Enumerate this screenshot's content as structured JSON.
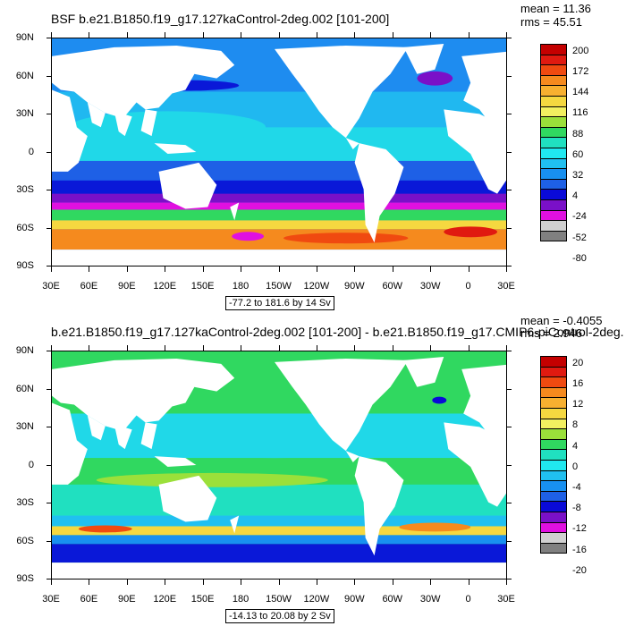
{
  "panels": [
    {
      "title": "BSF b.e21.B1850.f19_g17.127kaControl-2deg.002 [101-200]",
      "mean": "mean = 11.36",
      "rms": "rms = 45.51",
      "range_label": "-77.2 to 181.6 by 14 Sv",
      "lat_labels": [
        "90N",
        "60N",
        "30N",
        "0",
        "30S",
        "60S",
        "90S"
      ],
      "lon_labels": [
        "30E",
        "60E",
        "90E",
        "120E",
        "150E",
        "180",
        "150W",
        "120W",
        "90W",
        "60W",
        "30W",
        "0",
        "30E"
      ],
      "colorbar": {
        "labels": [
          "200",
          "172",
          "144",
          "116",
          "88",
          "60",
          "32",
          "4",
          "-24",
          "-52",
          "-80"
        ],
        "colors": [
          "#c40000",
          "#e01a10",
          "#f04a10",
          "#f58a1e",
          "#f7b030",
          "#f5d840",
          "#f2f060",
          "#9be03a",
          "#30d860",
          "#20e0c0",
          "#20e8f0",
          "#20c0f0",
          "#1890f0",
          "#1e60e6",
          "#0a0ad8",
          "#7a10c8",
          "#e010e0",
          "#d0d0d0",
          "#808080"
        ]
      },
      "style": "top"
    },
    {
      "title": "b.e21.B1850.f19_g17.127kaControl-2deg.002 [101-200] - b.e21.B1850.f19_g17.CMIP6-piControl-2deg.001",
      "mean": "mean = -0.4055",
      "rms": "rms = 2.946",
      "range_label": "-14.13 to 20.08 by 2 Sv",
      "lat_labels": [
        "90N",
        "60N",
        "30N",
        "0",
        "30S",
        "60S",
        "90S"
      ],
      "lon_labels": [
        "30E",
        "60E",
        "90E",
        "120E",
        "150E",
        "180",
        "150W",
        "120W",
        "90W",
        "60W",
        "30W",
        "0",
        "30E"
      ],
      "colorbar": {
        "labels": [
          "20",
          "16",
          "12",
          "8",
          "4",
          "0",
          "-4",
          "-8",
          "-12",
          "-16",
          "-20"
        ],
        "colors": [
          "#c40000",
          "#e01a10",
          "#f04a10",
          "#f58a1e",
          "#f7b030",
          "#f5d840",
          "#f2f060",
          "#9be03a",
          "#30d860",
          "#20e0c0",
          "#20e8f0",
          "#20c0f0",
          "#1890f0",
          "#1e60e6",
          "#0a0ad8",
          "#7a10c8",
          "#e010e0",
          "#d0d0d0",
          "#808080"
        ]
      },
      "style": "diff"
    }
  ]
}
